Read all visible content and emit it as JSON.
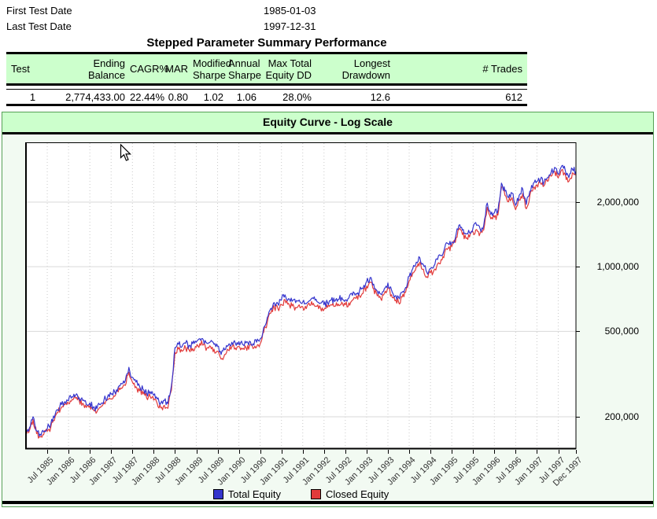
{
  "info": {
    "rows": [
      {
        "label": "First Test Date",
        "value": "1985-01-03"
      },
      {
        "label": "Last Test Date",
        "value": "1997-12-31"
      }
    ]
  },
  "summary_table": {
    "title": "Stepped Parameter Summary Performance",
    "columns": [
      "Test",
      "Ending Balance",
      "CAGR%",
      "MAR",
      "Modified Sharpe",
      "Annual Sharpe",
      "Max Total Equity DD",
      "Longest Drawdown",
      "# Trades"
    ],
    "rows": [
      [
        "1",
        "2,774,433.00",
        "22.44%",
        "0.80",
        "1.02",
        "1.06",
        "28.0%",
        "12.6",
        "612"
      ]
    ]
  },
  "chart": {
    "title": "Equity Curve - Log Scale",
    "legend": [
      {
        "label": "Total Equity",
        "color": "#3535cd"
      },
      {
        "label": "Closed Equity",
        "color": "#e23b3b"
      }
    ],
    "y_ticks": [
      {
        "label": "2,000,000",
        "value": 2000000
      },
      {
        "label": "1,000,000",
        "value": 1000000
      },
      {
        "label": "500,000",
        "value": 500000
      },
      {
        "label": "200,000",
        "value": 200000
      }
    ],
    "x_ticks": [
      {
        "label": "Jul 1985",
        "month": 6
      },
      {
        "label": "Jan 1986",
        "month": 12
      },
      {
        "label": "Jul 1986",
        "month": 18
      },
      {
        "label": "Jan 1987",
        "month": 24
      },
      {
        "label": "Jul 1987",
        "month": 30
      },
      {
        "label": "Jan 1988",
        "month": 36
      },
      {
        "label": "Jul 1988",
        "month": 42
      },
      {
        "label": "Jan 1989",
        "month": 48
      },
      {
        "label": "Jul 1989",
        "month": 54
      },
      {
        "label": "Jan 1990",
        "month": 60
      },
      {
        "label": "Jul 1990",
        "month": 66
      },
      {
        "label": "Jan 1991",
        "month": 72
      },
      {
        "label": "Jul 1991",
        "month": 78
      },
      {
        "label": "Jan 1992",
        "month": 84
      },
      {
        "label": "Jul 1992",
        "month": 90
      },
      {
        "label": "Jan 1993",
        "month": 96
      },
      {
        "label": "Jul 1993",
        "month": 102
      },
      {
        "label": "Jan 1994",
        "month": 108
      },
      {
        "label": "Jul 1994",
        "month": 114
      },
      {
        "label": "Jan 1995",
        "month": 120
      },
      {
        "label": "Jul 1995",
        "month": 126
      },
      {
        "label": "Jan 1996",
        "month": 132
      },
      {
        "label": "Jul 1996",
        "month": 138
      },
      {
        "label": "Jan 1997",
        "month": 144
      },
      {
        "label": "Jul 1997",
        "month": 150
      },
      {
        "label": "Dec 1997",
        "month": 155
      }
    ]
  },
  "chart_data": {
    "type": "line",
    "title": "Equity Curve - Log Scale",
    "y_scale": "log",
    "x_unit": "month",
    "x_start": "1985-01",
    "x_end": "1997-12",
    "y_tick_values": [
      2000000,
      1000000,
      500000,
      200000
    ],
    "y_range_approx": [
      140000,
      3800000
    ],
    "legend_position": "bottom",
    "series": [
      {
        "name": "Total Equity",
        "color": "#3535cd",
        "values": [
          170000,
          178000,
          200000,
          172000,
          166000,
          170000,
          176000,
          185000,
          198000,
          215000,
          228000,
          235000,
          238000,
          248000,
          252000,
          245000,
          238000,
          228000,
          232000,
          222000,
          218000,
          228000,
          240000,
          248000,
          255000,
          262000,
          275000,
          285000,
          295000,
          340000,
          305000,
          290000,
          278000,
          268000,
          258000,
          262000,
          252000,
          242000,
          232000,
          238000,
          230000,
          280000,
          420000,
          435000,
          425000,
          440000,
          430000,
          438000,
          445000,
          462000,
          455000,
          440000,
          448000,
          435000,
          425000,
          390000,
          410000,
          430000,
          445000,
          440000,
          448000,
          435000,
          442000,
          450000,
          438000,
          445000,
          460000,
          520000,
          580000,
          640000,
          680000,
          672000,
          700000,
          740000,
          710000,
          690000,
          680000,
          700000,
          685000,
          672000,
          695000,
          710000,
          688000,
          678000,
          665000,
          680000,
          700000,
          688000,
          705000,
          720000,
          700000,
          715000,
          735000,
          750000,
          770000,
          790000,
          855000,
          890000,
          830000,
          770000,
          745000,
          790000,
          840000,
          780000,
          730000,
          720000,
          760000,
          800000,
          900000,
          980000,
          1050000,
          1100000,
          1020000,
          940000,
          980000,
          1010000,
          1080000,
          1130000,
          1220000,
          1280000,
          1300000,
          1360000,
          1560000,
          1480000,
          1420000,
          1440000,
          1520000,
          1560000,
          1500000,
          1550000,
          1980000,
          1750000,
          1780000,
          1820000,
          2450000,
          2250000,
          2100000,
          2200000,
          1930000,
          2150000,
          2300000,
          1950000,
          2250000,
          2450000,
          2500000,
          2550000,
          2480000,
          2600000,
          2750000,
          2900000,
          2700000,
          2950000,
          2800000,
          2600000,
          2850000,
          2774433
        ]
      },
      {
        "name": "Closed Equity",
        "color": "#e23b3b",
        "values": [
          165000,
          173000,
          194000,
          167000,
          161000,
          165000,
          171000,
          179000,
          192000,
          209000,
          221000,
          228000,
          231000,
          241000,
          244000,
          238000,
          231000,
          221000,
          225000,
          215000,
          211000,
          221000,
          233000,
          241000,
          242000,
          249000,
          261000,
          271000,
          280000,
          323000,
          290000,
          276000,
          264000,
          255000,
          245000,
          249000,
          239000,
          230000,
          220000,
          226000,
          219000,
          266000,
          399000,
          413000,
          404000,
          418000,
          409000,
          416000,
          423000,
          439000,
          432000,
          418000,
          426000,
          413000,
          404000,
          371000,
          390000,
          409000,
          423000,
          418000,
          426000,
          413000,
          420000,
          428000,
          416000,
          423000,
          437000,
          494000,
          551000,
          608000,
          646000,
          638000,
          665000,
          703000,
          675000,
          656000,
          646000,
          665000,
          651000,
          638000,
          660000,
          675000,
          654000,
          644000,
          632000,
          646000,
          665000,
          654000,
          670000,
          684000,
          665000,
          679000,
          698000,
          713000,
          732000,
          751000,
          812000,
          846000,
          789000,
          732000,
          708000,
          751000,
          798000,
          741000,
          694000,
          684000,
          722000,
          760000,
          860000,
          936000,
          1003000,
          1051000,
          974000,
          898000,
          936000,
          965000,
          1031000,
          1079000,
          1165000,
          1222000,
          1242000,
          1299000,
          1490000,
          1413000,
          1356000,
          1375000,
          1452000,
          1490000,
          1433000,
          1480000,
          1891000,
          1671000,
          1700000,
          1738000,
          2340000,
          2149000,
          2006000,
          2101000,
          1843000,
          2053000,
          2197000,
          1862000,
          2149000,
          2340000,
          2400000,
          2448000,
          2381000,
          2496000,
          2640000,
          2784000,
          2592000,
          2832000,
          2688000,
          2496000,
          2736000,
          2663000
        ]
      }
    ]
  },
  "colors": {
    "header_green": "#ccffcc",
    "chart_bg": "#f2faf2",
    "container_border": "#55a055",
    "total_equity": "#3535cd",
    "closed_equity": "#e23b3b",
    "gridline": "#d9d9d9"
  }
}
